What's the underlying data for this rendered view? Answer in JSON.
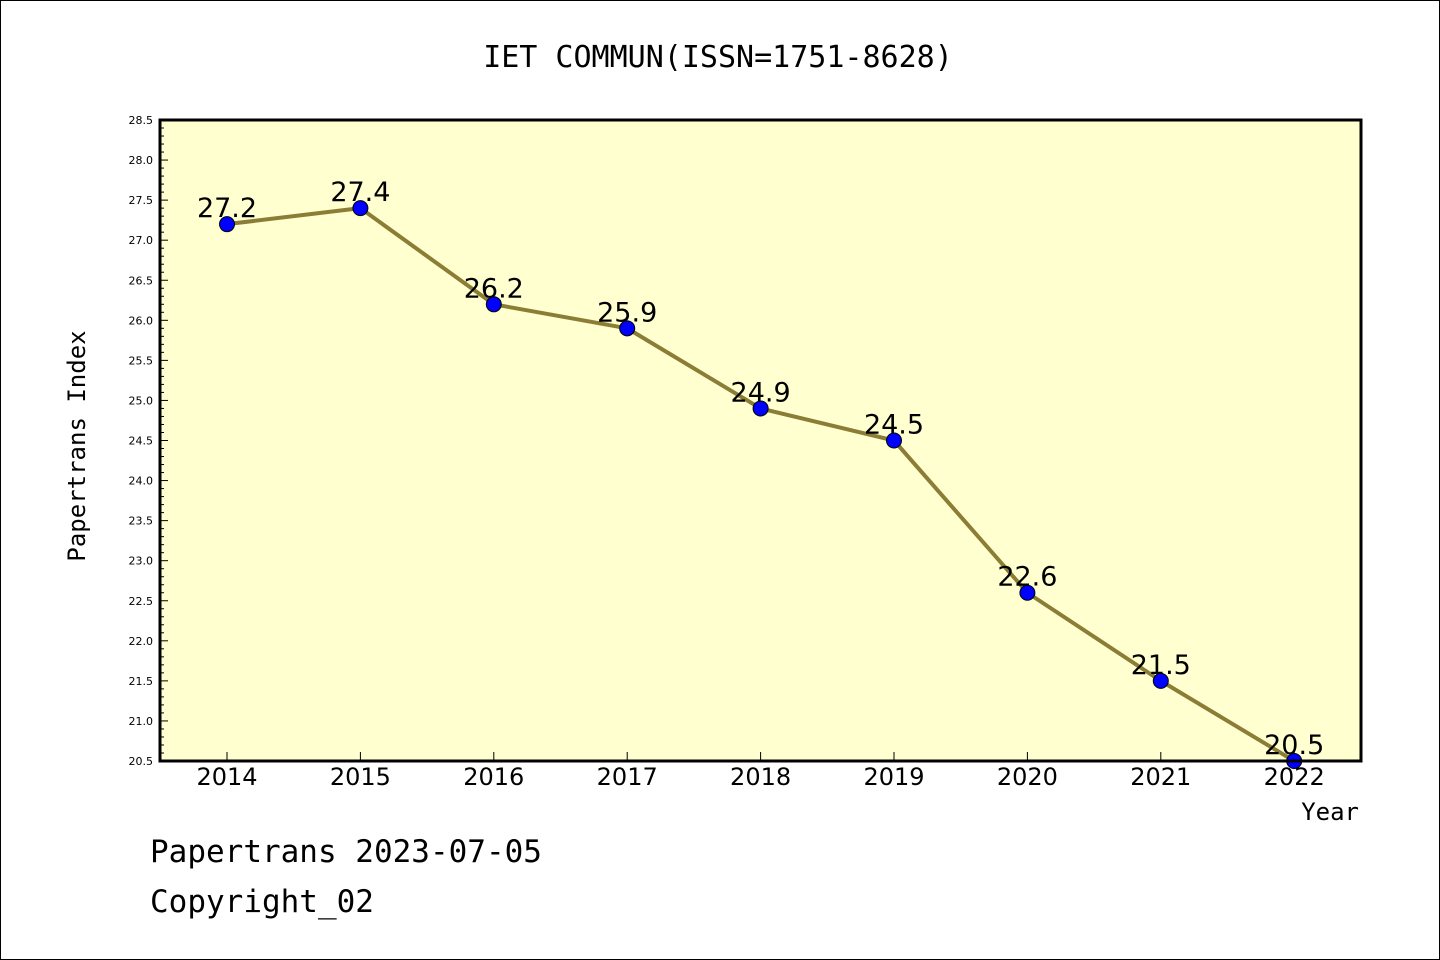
{
  "chart_data": {
    "type": "line",
    "title": "IET COMMUN(ISSN=1751-8628)",
    "xlabel": "Year",
    "ylabel": "Papertrans Index",
    "categories": [
      "2014",
      "2015",
      "2016",
      "2017",
      "2018",
      "2019",
      "2020",
      "2021",
      "2022"
    ],
    "series": [
      {
        "values": [
          27.2,
          27.4,
          26.2,
          25.9,
          24.9,
          24.5,
          22.6,
          21.5,
          20.5
        ]
      }
    ],
    "data_labels": [
      "27.2",
      "27.4",
      "26.2",
      "25.9",
      "24.9",
      "24.5",
      "22.6",
      "21.5",
      "20.5"
    ],
    "ylim": [
      20.5,
      28.5
    ],
    "yticks": [
      "20.5",
      "21.0",
      "21.5",
      "22.0",
      "22.5",
      "23.0",
      "23.5",
      "24.0",
      "24.5",
      "25.0",
      "25.5",
      "26.0",
      "26.5",
      "27.0",
      "27.5",
      "28.0",
      "28.5"
    ],
    "grid": false,
    "legend": "none",
    "colors": {
      "plot_background": "#ffffd0",
      "line": "#8b7d35",
      "marker": "#0000ff"
    }
  },
  "footer": {
    "line1": "Papertrans 2023-07-05",
    "line2": "Copyright_02"
  }
}
